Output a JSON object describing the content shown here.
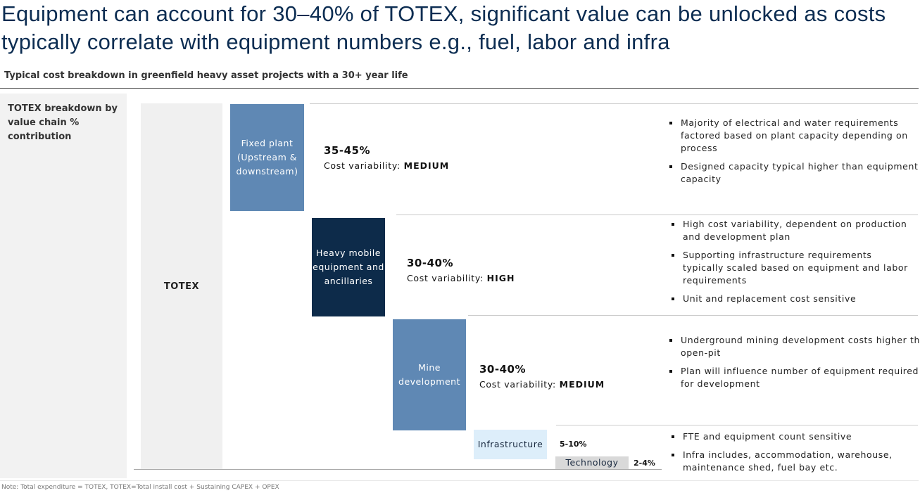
{
  "header": {
    "title": "Equipment can account for 30–40% of TOTEX, significant value can be unlocked as costs typically correlate with equipment numbers e.g., fuel, labor and infra",
    "subtitle": "Typical cost breakdown in greenfield heavy asset projects with a 30+ year life"
  },
  "left_panel": {
    "label": "TOTEX breakdown by value chain % contribution"
  },
  "totex": {
    "label": "TOTEX"
  },
  "segments": [
    {
      "label": "Fixed plant (Upstream & downstream)",
      "share": "35-45%",
      "variability_label": "Cost variability:",
      "variability": "MEDIUM"
    },
    {
      "label": "Heavy mobile equipment and ancillaries",
      "share": "30-40%",
      "variability_label": "Cost variability:",
      "variability": "HIGH"
    },
    {
      "label": "Mine development",
      "share": "30-40%",
      "variability_label": "Cost variability:",
      "variability": "MEDIUM"
    },
    {
      "label": "Infrastructure",
      "share": "5-10%"
    },
    {
      "label": "Technology",
      "share": "2-4%"
    }
  ],
  "bullet_groups": [
    [
      "Majority of electrical and water requirements factored based on plant capacity depending on process",
      "Designed capacity typical higher than equipment capacity"
    ],
    [
      "High cost variability, dependent on production and development plan",
      "Supporting infrastructure requirements typically scaled based on equipment and labor requirements",
      "Unit and replacement cost sensitive"
    ],
    [
      "Underground mining development costs higher than open-pit",
      "Plan will influence number of equipment required for development"
    ],
    [
      "FTE and equipment count sensitive",
      "Infra includes, accommodation, warehouse, maintenance shed, fuel bay etc."
    ]
  ],
  "note": "Note: Total expenditure = TOTEX, TOTEX=Total install cost + Sustaining CAPEX + OPEX"
}
